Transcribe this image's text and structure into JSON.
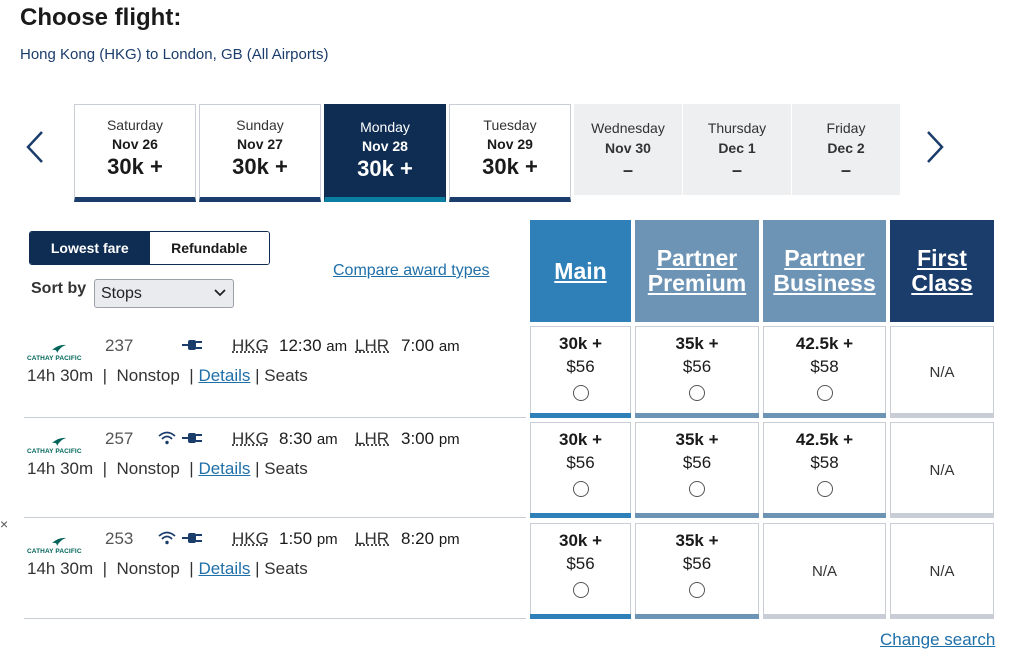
{
  "page": {
    "title": "Choose flight:",
    "route": "Hong Kong (HKG) to London, GB (All Airports)"
  },
  "dates": [
    {
      "dow": "Saturday",
      "date": "Nov 26",
      "price": "30k +"
    },
    {
      "dow": "Sunday",
      "date": "Nov 27",
      "price": "30k +"
    },
    {
      "dow": "Monday",
      "date": "Nov 28",
      "price": "30k +",
      "selected": true
    },
    {
      "dow": "Tuesday",
      "date": "Nov 29",
      "price": "30k +"
    },
    {
      "dow": "Wednesday",
      "date": "Nov 30",
      "price": "–"
    },
    {
      "dow": "Thursday",
      "date": "Dec 1",
      "price": "–"
    },
    {
      "dow": "Friday",
      "date": "Dec 2",
      "price": "–"
    }
  ],
  "fare_toggle": {
    "lowest": "Lowest fare",
    "refundable": "Refundable",
    "active": "lowest"
  },
  "sort": {
    "label": "Sort by",
    "value": "Stops"
  },
  "compare_link": "Compare award types",
  "columns": {
    "main": [
      "Main"
    ],
    "partner_premium": [
      "Partner",
      "Premium"
    ],
    "partner_business": [
      "Partner",
      "Business"
    ],
    "first": [
      "First",
      "Class"
    ]
  },
  "airline_logo_text": "CATHAY PACIFIC",
  "flights": [
    {
      "number": "237",
      "amenities": [
        "power-icon"
      ],
      "dep_airport": "HKG",
      "dep_time": "12:30",
      "dep_ampm": "am",
      "arr_airport": "LHR",
      "arr_time": "7:00",
      "arr_ampm": "am",
      "duration": "14h 30m",
      "stops": "Nonstop",
      "details": "Details",
      "seats": "Seats",
      "fares": {
        "main": {
          "miles": "30k +",
          "tax": "$56"
        },
        "partner_premium": {
          "miles": "35k +",
          "tax": "$56"
        },
        "partner_business": {
          "miles": "42.5k +",
          "tax": "$58"
        },
        "first": "N/A"
      }
    },
    {
      "number": "257",
      "amenities": [
        "wifi-icon",
        "power-icon"
      ],
      "dep_airport": "HKG",
      "dep_time": "8:30",
      "dep_ampm": "am",
      "arr_airport": "LHR",
      "arr_time": "3:00",
      "arr_ampm": "pm",
      "duration": "14h 30m",
      "stops": "Nonstop",
      "details": "Details",
      "seats": "Seats",
      "fares": {
        "main": {
          "miles": "30k +",
          "tax": "$56"
        },
        "partner_premium": {
          "miles": "35k +",
          "tax": "$56"
        },
        "partner_business": {
          "miles": "42.5k +",
          "tax": "$58"
        },
        "first": "N/A"
      }
    },
    {
      "number": "253",
      "amenities": [
        "wifi-icon",
        "power-icon"
      ],
      "dep_airport": "HKG",
      "dep_time": "1:50",
      "dep_ampm": "pm",
      "arr_airport": "LHR",
      "arr_time": "8:20",
      "arr_ampm": "pm",
      "duration": "14h 30m",
      "stops": "Nonstop",
      "details": "Details",
      "seats": "Seats",
      "fares": {
        "main": {
          "miles": "30k +",
          "tax": "$56"
        },
        "partner_premium": {
          "miles": "35k +",
          "tax": "$56"
        },
        "partner_business": "N/A",
        "first": "N/A"
      }
    }
  ],
  "separators": {
    "pipe": "|"
  },
  "edge_mark": "×",
  "change_search": "Change search",
  "colors": {
    "navy": "#0f2d52",
    "main_blue": "#2f80b8",
    "partner_blue": "#6d93b5",
    "first_navy": "#1b3d6b",
    "link": "#1f6fa8"
  }
}
